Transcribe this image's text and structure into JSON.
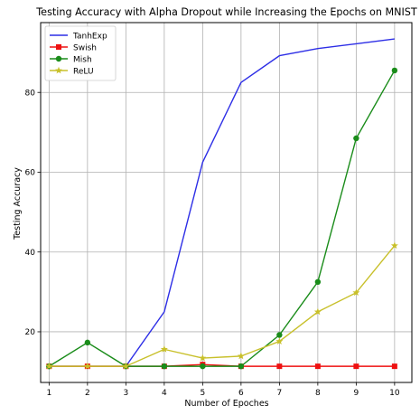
{
  "chart_data": {
    "type": "line",
    "title": "Testing Accuracy with Alpha Dropout while Increasing the Epochs on MNIST",
    "xlabel": "Number of Epoches",
    "ylabel": "Testing Accuracy",
    "x": [
      1,
      2,
      3,
      4,
      5,
      6,
      7,
      8,
      9,
      10
    ],
    "xlim": [
      0.78,
      10.45
    ],
    "ylim": [
      7.3,
      97.5
    ],
    "xticks": [
      1,
      2,
      3,
      4,
      5,
      6,
      7,
      8,
      9,
      10
    ],
    "yticks": [
      20,
      40,
      60,
      80
    ],
    "grid": true,
    "legend_position": "top-left",
    "series": [
      {
        "name": "TanhExp",
        "color": "#2d2ee6",
        "marker": "none",
        "values": [
          11.35,
          11.35,
          11.35,
          25.0,
          62.5,
          82.5,
          89.2,
          91.0,
          92.2,
          93.4
        ]
      },
      {
        "name": "Swish",
        "color": "#ee1111",
        "marker": "square",
        "values": [
          11.35,
          11.35,
          11.35,
          11.35,
          11.8,
          11.35,
          11.35,
          11.35,
          11.35,
          11.35
        ]
      },
      {
        "name": "Mish",
        "color": "#1a8c1a",
        "marker": "circle",
        "values": [
          11.35,
          17.3,
          11.35,
          11.35,
          11.35,
          11.35,
          19.2,
          32.5,
          68.5,
          85.5
        ]
      },
      {
        "name": "ReLU",
        "color": "#c8c02a",
        "marker": "star",
        "values": [
          11.35,
          11.35,
          11.35,
          15.6,
          13.4,
          13.9,
          17.6,
          25.0,
          29.8,
          41.6
        ]
      }
    ]
  }
}
